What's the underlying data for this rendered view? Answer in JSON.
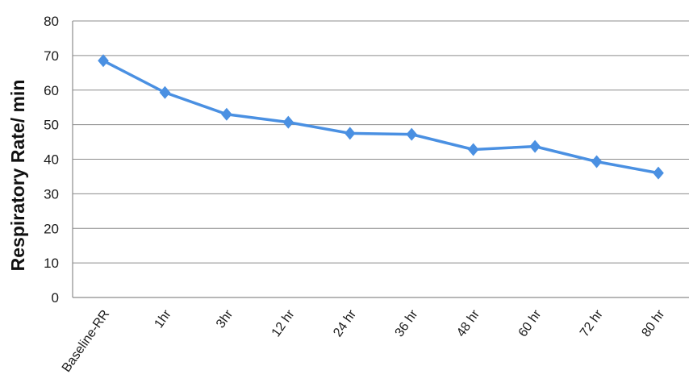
{
  "chart_data": {
    "type": "line",
    "title": "",
    "xlabel": "",
    "ylabel": "Respiratory Rate/ min",
    "categories": [
      "Baseline-RR",
      "1hr",
      "3hr",
      "12 hr",
      "24 hr",
      "36 hr",
      "48 hr",
      "60 hr",
      "72 hr",
      "80 hr"
    ],
    "series": [
      {
        "name": "",
        "values": [
          68.5,
          59.3,
          53.0,
          50.7,
          47.5,
          47.2,
          42.8,
          43.7,
          39.3,
          36.0
        ]
      }
    ],
    "ylim": [
      0,
      80
    ],
    "yticks": [
      0,
      10,
      20,
      30,
      40,
      50,
      60,
      70,
      80
    ],
    "grid": true,
    "legend": "none",
    "colors": {
      "line": "#4a90e2",
      "marker": "#4a90e2",
      "grid": "#8c8c8c",
      "axis": "#8c8c8c"
    }
  }
}
